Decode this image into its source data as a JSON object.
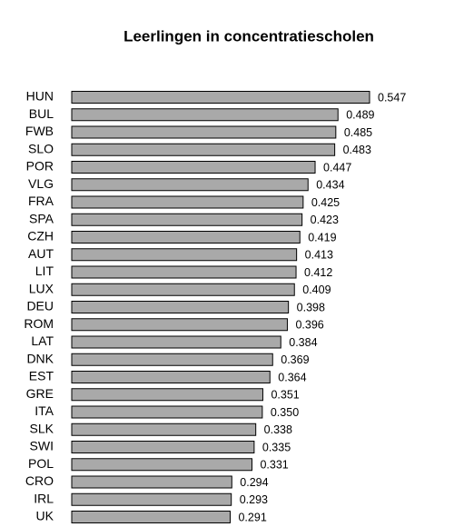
{
  "chart_data": {
    "type": "bar",
    "orientation": "horizontal",
    "title": "Leerlingen in concentratiescholen",
    "categories": [
      "HUN",
      "BUL",
      "FWB",
      "SLO",
      "POR",
      "VLG",
      "FRA",
      "SPA",
      "CZH",
      "AUT",
      "LIT",
      "LUX",
      "DEU",
      "ROM",
      "LAT",
      "DNK",
      "EST",
      "GRE",
      "ITA",
      "SLK",
      "SWI",
      "POL",
      "CRO",
      "IRL",
      "UK"
    ],
    "values": [
      0.547,
      0.489,
      0.485,
      0.483,
      0.447,
      0.434,
      0.425,
      0.423,
      0.419,
      0.413,
      0.412,
      0.409,
      0.398,
      0.396,
      0.384,
      0.369,
      0.364,
      0.351,
      0.35,
      0.338,
      0.335,
      0.331,
      0.294,
      0.293,
      0.291
    ],
    "value_labels": [
      "0.547",
      "0.489",
      "0.485",
      "0.483",
      "0.447",
      "0.434",
      "0.425",
      "0.423",
      "0.419",
      "0.413",
      "0.412",
      "0.409",
      "0.398",
      "0.396",
      "0.384",
      "0.369",
      "0.364",
      "0.351",
      "0.350",
      "0.338",
      "0.335",
      "0.331",
      "0.294",
      "0.293",
      "0.291"
    ],
    "color": "#a9a9a9"
  }
}
